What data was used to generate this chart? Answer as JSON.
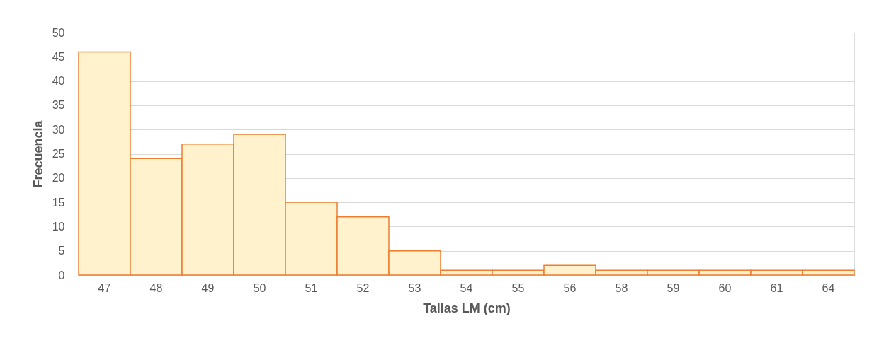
{
  "chart_data": {
    "type": "bar",
    "xlabel": "Tallas LM (cm)",
    "ylabel": "Frecuencia",
    "categories": [
      "47",
      "48",
      "49",
      "50",
      "51",
      "52",
      "53",
      "54",
      "55",
      "56",
      "58",
      "59",
      "60",
      "61",
      "64"
    ],
    "series": [
      {
        "color": "#fff2cc",
        "values": [
          46,
          24,
          27,
          29,
          15,
          12,
          5,
          1,
          1,
          2,
          1,
          1,
          1,
          1,
          1
        ]
      }
    ],
    "ylim": [
      0,
      50
    ],
    "yticks": [
      0,
      5,
      10,
      15,
      20,
      25,
      30,
      35,
      40,
      45,
      50
    ],
    "grid": "y"
  }
}
